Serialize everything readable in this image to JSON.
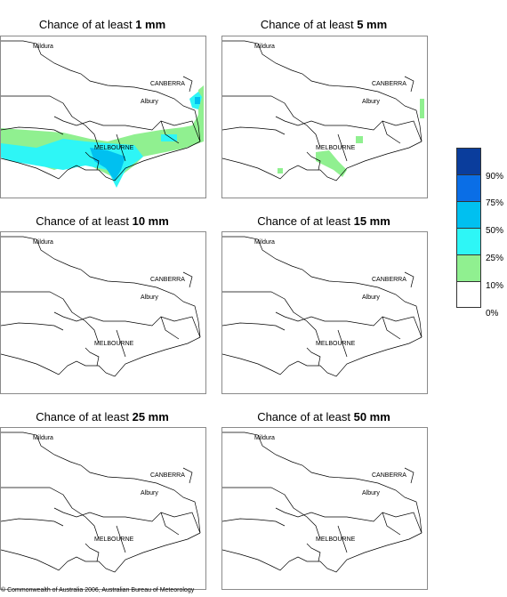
{
  "panels": [
    {
      "title_prefix": "Chance of at least ",
      "threshold": "1 mm"
    },
    {
      "title_prefix": "Chance of at least ",
      "threshold": "5 mm"
    },
    {
      "title_prefix": "Chance of at least ",
      "threshold": "10 mm"
    },
    {
      "title_prefix": "Chance of at least ",
      "threshold": "15 mm"
    },
    {
      "title_prefix": "Chance of at least ",
      "threshold": "25 mm"
    },
    {
      "title_prefix": "Chance of at least ",
      "threshold": "50 mm"
    }
  ],
  "cities": {
    "mildura": "Mildura",
    "canberra": "CANBERRA",
    "albury": "Albury",
    "melbourne": "MELBOURNE"
  },
  "legend": {
    "labels": [
      "90%",
      "75%",
      "50%",
      "25%",
      "10%",
      "0%"
    ],
    "colors": [
      "#0a3d9c",
      "#0a6ee6",
      "#00c0f0",
      "#2ef6f6",
      "#90f090",
      "#ffffff"
    ]
  },
  "footer": "© Commonwealth of Australia 2006, Australian Bureau of Meteorology"
}
